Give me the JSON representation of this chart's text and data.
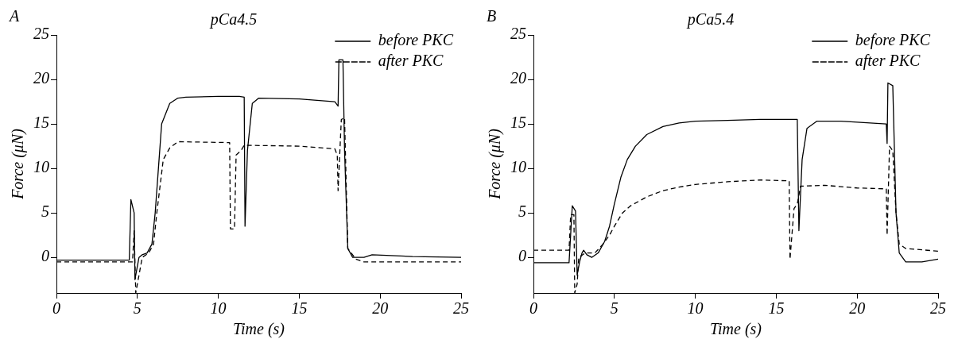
{
  "chart_data": [
    {
      "type": "line",
      "title": "pCa4.5",
      "xlabel": "Time (s)",
      "ylabel": "Force (μN)",
      "annotations": [
        "A"
      ],
      "xlim": [
        0,
        25
      ],
      "xticks": [
        0,
        5,
        10,
        15,
        20,
        25
      ],
      "ylim": [
        -4,
        25
      ],
      "yticks": [
        0,
        5,
        10,
        15,
        20,
        25
      ],
      "grid": false,
      "legend": "top right",
      "marker": "none",
      "series": [
        {
          "name": "before PKC",
          "color": "#000000",
          "line_style": "solid",
          "x": [
            0,
            4.5,
            4.6,
            4.8,
            4.85,
            5.1,
            5.3,
            5.6,
            5.9,
            6.1,
            6.3,
            6.5,
            7,
            7.5,
            8,
            10,
            11.3,
            11.6,
            11.65,
            11.8,
            12.1,
            12.5,
            15,
            17.2,
            17.4,
            17.45,
            17.7,
            17.8,
            18,
            18.3,
            19,
            19.5,
            22,
            25
          ],
          "values": [
            -0.3,
            -0.3,
            6.5,
            5,
            -2.5,
            0,
            0.3,
            0.5,
            1.5,
            5,
            10,
            15,
            17.3,
            17.9,
            18,
            18.1,
            18.1,
            18,
            3.5,
            12,
            17.3,
            17.9,
            17.8,
            17.5,
            17,
            22.2,
            22.2,
            12,
            1,
            0,
            0,
            0.3,
            0.1,
            0
          ]
        },
        {
          "name": "after PKC",
          "color": "#000000",
          "line_style": "dashed",
          "x": [
            0,
            4.7,
            4.8,
            4.9,
            5.1,
            5.3,
            5.7,
            6,
            6.2,
            6.4,
            6.6,
            7,
            7.5,
            10.7,
            10.75,
            11,
            11.1,
            11.4,
            11.6,
            15,
            17.2,
            17.35,
            17.4,
            17.6,
            17.8,
            18,
            18.5,
            19,
            25
          ],
          "values": [
            -0.5,
            -0.5,
            3,
            -4,
            -2,
            0,
            0.5,
            1.5,
            5,
            8,
            11,
            12.3,
            13,
            12.9,
            3.2,
            3.2,
            11.5,
            12,
            12.6,
            12.5,
            12.2,
            11.5,
            7.5,
            15.5,
            15.7,
            1,
            -0.2,
            -0.5,
            -0.5
          ]
        }
      ]
    },
    {
      "type": "line",
      "title": "pCa5.4",
      "xlabel": "Time (s)",
      "ylabel": "Force (μN)",
      "annotations": [
        "B"
      ],
      "xlim": [
        0,
        25
      ],
      "xticks": [
        0,
        5,
        10,
        15,
        20,
        25
      ],
      "ylim": [
        -4,
        25
      ],
      "yticks": [
        0,
        5,
        10,
        15,
        20,
        25
      ],
      "grid": false,
      "legend": "top right",
      "marker": "none",
      "series": [
        {
          "name": "before PKC",
          "color": "#000000",
          "line_style": "solid",
          "x": [
            0,
            2.2,
            2.4,
            2.6,
            2.7,
            2.85,
            3,
            3.1,
            3.3,
            3.6,
            4,
            4.4,
            4.7,
            5,
            5.4,
            5.8,
            6.3,
            7,
            8,
            9,
            10,
            12,
            14,
            16.3,
            16.4,
            16.6,
            16.9,
            17.5,
            19,
            21.8,
            21.85,
            21.9,
            22.2,
            22.4,
            22.6,
            23,
            24,
            25
          ],
          "values": [
            -0.6,
            -0.6,
            5.8,
            5.2,
            -2,
            -0.5,
            0.5,
            0.8,
            0.3,
            0,
            0.5,
            1.8,
            3.5,
            6,
            9,
            11,
            12.5,
            13.8,
            14.7,
            15.1,
            15.3,
            15.4,
            15.5,
            15.5,
            3,
            11,
            14.5,
            15.3,
            15.3,
            15,
            12.8,
            19.6,
            19.3,
            5,
            0.5,
            -0.5,
            -0.5,
            -0.2
          ]
        },
        {
          "name": "after PKC",
          "color": "#000000",
          "line_style": "dashed",
          "x": [
            0,
            2.2,
            2.3,
            2.5,
            2.55,
            2.7,
            2.8,
            3.2,
            3.8,
            4.3,
            4.7,
            5,
            5.5,
            6,
            7,
            8,
            9,
            10,
            12,
            14,
            15.8,
            15.85,
            16.1,
            16.3,
            16.5,
            18,
            20,
            21.8,
            21.85,
            22,
            22.2,
            22.4,
            22.6,
            23,
            25
          ],
          "values": [
            0.8,
            0.8,
            4.8,
            4.8,
            -4,
            -3,
            0,
            0.5,
            0.5,
            1.5,
            2.5,
            3.5,
            5,
            5.8,
            6.8,
            7.5,
            7.9,
            8.2,
            8.5,
            8.7,
            8.6,
            -0.2,
            5.5,
            6,
            8,
            8.1,
            7.8,
            7.7,
            2.5,
            12.5,
            12,
            5,
            1.5,
            1,
            0.7
          ]
        }
      ]
    }
  ]
}
